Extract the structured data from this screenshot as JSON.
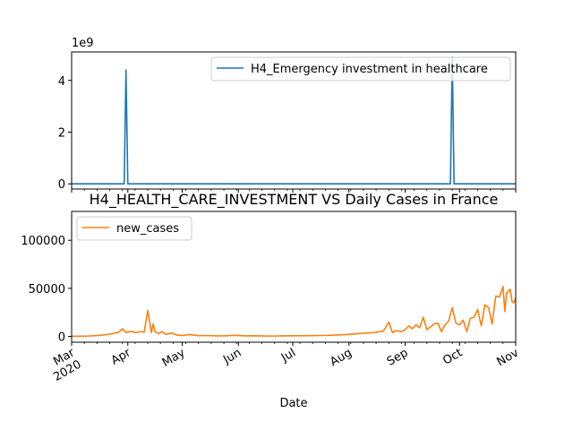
{
  "chart_data": [
    {
      "type": "line",
      "title": "",
      "xlabel": "",
      "ylabel": "",
      "exponent_label": "1e9",
      "ylim": [
        -200000000,
        5100000000
      ],
      "yticks": [
        0,
        2,
        4
      ],
      "grid": false,
      "legend_placement": "upper right",
      "series": [
        {
          "name": "H4_Emergency investment in healthcare",
          "color": "#1f77b4",
          "x": [
            "2020-03-01",
            "2020-03-30",
            "2020-03-31",
            "2020-04-01",
            "2020-09-26",
            "2020-09-27",
            "2020-09-28",
            "2020-11-01"
          ],
          "values": [
            0,
            0,
            4400000000,
            0,
            0,
            4900000000,
            0,
            0
          ]
        }
      ]
    },
    {
      "type": "line",
      "title": "H4_HEALTH_CARE_INVESTMENT VS Daily Cases in France",
      "xlabel": "Date",
      "ylabel": "",
      "ylim": [
        -6000,
        130000
      ],
      "yticks": [
        0,
        50000,
        100000
      ],
      "xlim": [
        "2020-03-01",
        "2020-11-01"
      ],
      "xticks": [
        {
          "date": "2020-03-01",
          "label": "Mar\n2020"
        },
        {
          "date": "2020-04-01",
          "label": "Apr"
        },
        {
          "date": "2020-05-01",
          "label": "May"
        },
        {
          "date": "2020-06-01",
          "label": "Jun"
        },
        {
          "date": "2020-07-01",
          "label": "Jul"
        },
        {
          "date": "2020-08-01",
          "label": "Aug"
        },
        {
          "date": "2020-09-01",
          "label": "Sep"
        },
        {
          "date": "2020-10-01",
          "label": "Oct"
        },
        {
          "date": "2020-11-01",
          "label": "Nov"
        }
      ],
      "grid": false,
      "legend_placement": "upper left",
      "series": [
        {
          "name": "new_cases",
          "color": "#ff7f0e",
          "x": [
            "2020-03-01",
            "2020-03-10",
            "2020-03-15",
            "2020-03-20",
            "2020-03-25",
            "2020-03-27",
            "2020-03-29",
            "2020-03-31",
            "2020-04-03",
            "2020-04-05",
            "2020-04-08",
            "2020-04-10",
            "2020-04-12",
            "2020-04-14",
            "2020-04-15",
            "2020-04-16",
            "2020-04-18",
            "2020-04-20",
            "2020-04-22",
            "2020-04-25",
            "2020-04-28",
            "2020-05-01",
            "2020-05-05",
            "2020-05-10",
            "2020-05-15",
            "2020-05-20",
            "2020-05-25",
            "2020-05-30",
            "2020-06-05",
            "2020-06-10",
            "2020-06-15",
            "2020-06-20",
            "2020-06-25",
            "2020-07-01",
            "2020-07-10",
            "2020-07-20",
            "2020-07-31",
            "2020-08-10",
            "2020-08-15",
            "2020-08-20",
            "2020-08-23",
            "2020-08-25",
            "2020-08-27",
            "2020-08-30",
            "2020-09-01",
            "2020-09-03",
            "2020-09-05",
            "2020-09-07",
            "2020-09-09",
            "2020-09-11",
            "2020-09-13",
            "2020-09-15",
            "2020-09-17",
            "2020-09-19",
            "2020-09-21",
            "2020-09-23",
            "2020-09-25",
            "2020-09-27",
            "2020-09-29",
            "2020-10-01",
            "2020-10-03",
            "2020-10-05",
            "2020-10-07",
            "2020-10-09",
            "2020-10-11",
            "2020-10-13",
            "2020-10-15",
            "2020-10-17",
            "2020-10-19",
            "2020-10-21",
            "2020-10-23",
            "2020-10-25",
            "2020-10-26",
            "2020-10-27",
            "2020-10-28",
            "2020-10-29",
            "2020-10-30",
            "2020-10-31",
            "2020-11-01"
          ],
          "values": [
            100,
            400,
            900,
            1800,
            3500,
            4500,
            8000,
            4000,
            5500,
            4000,
            5000,
            4500,
            27000,
            4000,
            13000,
            5000,
            3000,
            5000,
            2000,
            3500,
            1500,
            1000,
            2000,
            800,
            1000,
            600,
            700,
            1200,
            600,
            700,
            500,
            400,
            600,
            700,
            800,
            1100,
            2000,
            3500,
            4000,
            5500,
            15000,
            4000,
            6000,
            5000,
            7000,
            11000,
            8000,
            12000,
            9000,
            20000,
            7000,
            10000,
            13000,
            14000,
            5000,
            12000,
            16000,
            30000,
            14000,
            12000,
            17000,
            5000,
            19000,
            20000,
            28000,
            11000,
            33000,
            30000,
            13000,
            42000,
            41000,
            52000,
            26000,
            45000,
            47000,
            49000,
            36000,
            35000,
            40000
          ]
        }
      ]
    }
  ]
}
